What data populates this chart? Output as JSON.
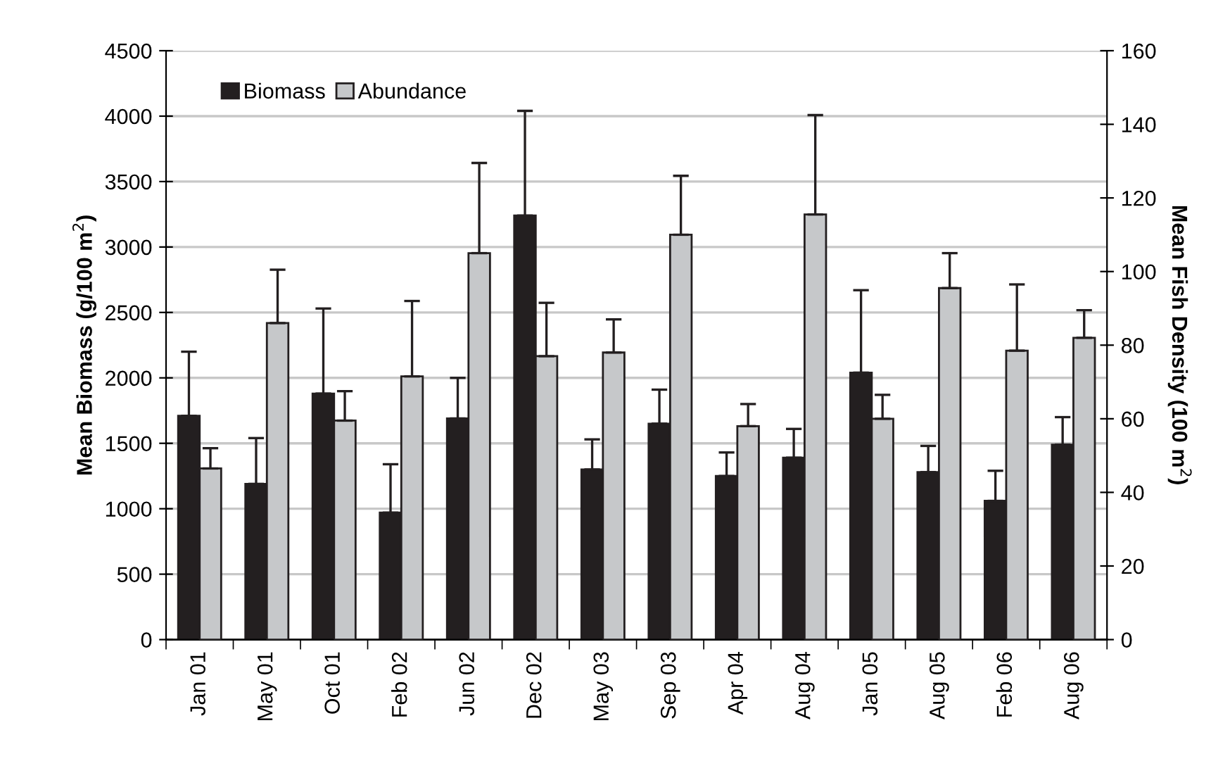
{
  "chart_data": {
    "type": "bar",
    "ylabel": "Mean Biomass (g/100 m$^{2}$)",
    "y2label": "Mean Fish Density (100 m$^{2}$)",
    "categories": [
      "Jan 01",
      "May 01",
      "Oct 01",
      "Feb 02",
      "Jun 02",
      "Dec 02",
      "May 03",
      "Sep 03",
      "Apr 04",
      "Aug 04",
      "Jan 05",
      "Aug 05",
      "Feb 06",
      "Aug 06"
    ],
    "series": [
      {
        "name": "Biomass",
        "color": "#231f20",
        "values": [
          1710,
          1190,
          1880,
          970,
          1690,
          3240,
          1300,
          1650,
          1250,
          1390,
          2040,
          1280,
          1060,
          1490
        ],
        "errors": [
          [
            1710,
            2200
          ],
          [
            1190,
            1540
          ],
          [
            1880,
            2530
          ],
          [
            970,
            1340
          ],
          [
            1690,
            2000
          ],
          [
            3240,
            4040
          ],
          [
            1300,
            1530
          ],
          [
            1650,
            1910
          ],
          [
            1250,
            1430
          ],
          [
            1390,
            1610
          ],
          [
            2040,
            2670
          ],
          [
            1280,
            1480
          ],
          [
            1060,
            1290
          ],
          [
            1490,
            1700
          ]
        ]
      },
      {
        "name": "Abundance",
        "color": "#c6c8ca",
        "axis": "y2",
        "values": [
          46.5,
          86,
          59.5,
          71.5,
          105,
          77,
          78,
          110,
          58,
          115.5,
          60,
          95.5,
          78.5,
          82
        ],
        "errors": [
          [
            46.5,
            52
          ],
          [
            86,
            100.5
          ],
          [
            59.5,
            67.5
          ],
          [
            71.5,
            92
          ],
          [
            105,
            129.5
          ],
          [
            77,
            91.5
          ],
          [
            78,
            87
          ],
          [
            110,
            126
          ],
          [
            58,
            64
          ],
          [
            115.5,
            142.5
          ],
          [
            60,
            66.5
          ],
          [
            95.5,
            105
          ],
          [
            78.5,
            96.5
          ],
          [
            82,
            89.5
          ]
        ]
      }
    ],
    "ylim": [
      0,
      4500
    ],
    "yticks": [
      0,
      500,
      1000,
      1500,
      2000,
      2500,
      3000,
      3500,
      4000,
      4500
    ],
    "y2lim": [
      0,
      160
    ],
    "y2ticks": [
      0,
      20,
      40,
      60,
      80,
      100,
      120,
      140,
      160
    ],
    "grid": "y",
    "legend": "top left"
  }
}
